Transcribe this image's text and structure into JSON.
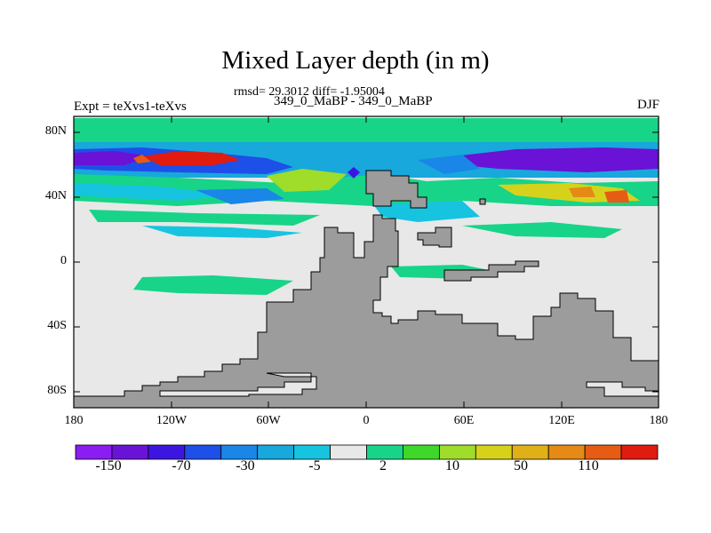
{
  "title": "Mixed Layer depth (in m)",
  "stats": "rmsd= 29.3012 diff= -1.95004",
  "subtitle": "349_0_MaBP - 349_0_MaBP",
  "left_label": "Expt = teXvs1-teXvs",
  "right_label": "DJF",
  "map": {
    "y_ticks": [
      "80N",
      "40N",
      "0",
      "40S",
      "80S"
    ],
    "x_ticks": [
      "180",
      "120W",
      "60W",
      "0",
      "60E",
      "120E",
      "180"
    ]
  },
  "colorbar": {
    "colors": [
      "#8a1df0",
      "#6a12d6",
      "#3c16e0",
      "#1e4fe8",
      "#1a86e8",
      "#18a8dc",
      "#16c4e0",
      "#e8e8e8",
      "#17d488",
      "#3ed82a",
      "#a0dc2a",
      "#d6d21c",
      "#e0b018",
      "#e58a16",
      "#e65c14",
      "#e01c10"
    ],
    "labels": [
      "-150",
      "-70",
      "-30",
      "-5",
      "2",
      "10",
      "50",
      "110"
    ]
  },
  "colors": {
    "land": "#9c9c9c",
    "ocean_neutral": "#e8e8e8"
  }
}
